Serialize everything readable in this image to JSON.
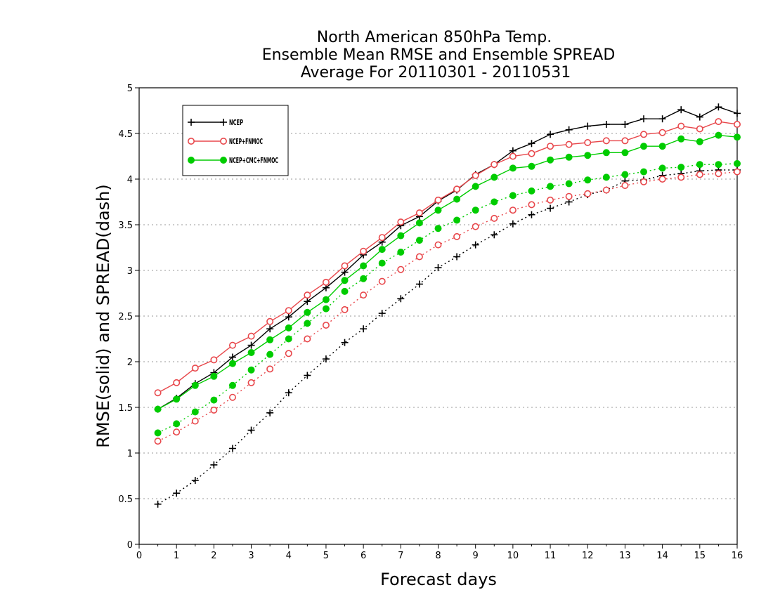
{
  "chart_data": {
    "type": "line",
    "title": [
      "North American 850hPa Temp.",
      "Ensemble Mean RMSE and Ensemble SPREAD",
      "Average For 20110301 - 20110531"
    ],
    "xlabel": "Forecast days",
    "ylabel": "RMSE(solid) and SPREAD(dash)",
    "xlim": [
      0,
      16
    ],
    "ylim": [
      0,
      5
    ],
    "x_ticks": [
      "0",
      "1",
      "2",
      "3",
      "4",
      "5",
      "6",
      "7",
      "8",
      "9",
      "10",
      "11",
      "12",
      "13",
      "14",
      "15",
      "16"
    ],
    "y_ticks": [
      "0",
      "0.5",
      "1",
      "1.5",
      "2",
      "2.5",
      "3",
      "3.5",
      "4",
      "4.5",
      "5"
    ],
    "grid": "horizontal dotted",
    "legend_position": "top-left",
    "x": [
      0.5,
      1,
      1.5,
      2,
      2.5,
      3,
      3.5,
      4,
      4.5,
      5,
      5.5,
      6,
      6.5,
      7,
      7.5,
      8,
      8.5,
      9,
      9.5,
      10,
      10.5,
      11,
      11.5,
      12,
      12.5,
      13,
      13.5,
      14,
      14.5,
      15,
      15.5,
      16
    ],
    "series": [
      {
        "name": "NCEP",
        "color": "#000000",
        "marker": "plus",
        "style": "solid",
        "values": [
          1.48,
          1.6,
          1.76,
          1.88,
          2.05,
          2.18,
          2.36,
          2.49,
          2.66,
          2.81,
          2.98,
          3.17,
          3.31,
          3.49,
          3.59,
          3.76,
          3.88,
          4.05,
          4.16,
          4.31,
          4.39,
          4.49,
          4.54,
          4.58,
          4.6,
          4.6,
          4.66,
          4.66,
          4.76,
          4.68,
          4.79,
          4.72
        ]
      },
      {
        "name": "NCEP+FNMOC",
        "color": "#e8474b",
        "marker": "open-circle",
        "style": "solid",
        "values": [
          1.66,
          1.77,
          1.93,
          2.02,
          2.18,
          2.28,
          2.44,
          2.56,
          2.73,
          2.87,
          3.05,
          3.21,
          3.36,
          3.53,
          3.63,
          3.77,
          3.89,
          4.04,
          4.16,
          4.25,
          4.28,
          4.36,
          4.38,
          4.4,
          4.42,
          4.42,
          4.49,
          4.51,
          4.58,
          4.55,
          4.63,
          4.6
        ]
      },
      {
        "name": "NCEP+CMC+FNMOC",
        "color": "#00cc00",
        "marker": "filled-circle",
        "style": "solid",
        "values": [
          1.48,
          1.59,
          1.74,
          1.84,
          1.98,
          2.1,
          2.24,
          2.37,
          2.54,
          2.68,
          2.89,
          3.05,
          3.23,
          3.38,
          3.52,
          3.66,
          3.78,
          3.92,
          4.02,
          4.12,
          4.14,
          4.21,
          4.24,
          4.26,
          4.29,
          4.29,
          4.36,
          4.36,
          4.44,
          4.41,
          4.48,
          4.46
        ]
      },
      {
        "name": "NCEP spread",
        "color": "#000000",
        "marker": "plus",
        "style": "dotted",
        "values": [
          0.44,
          0.56,
          0.7,
          0.87,
          1.05,
          1.25,
          1.44,
          1.66,
          1.85,
          2.03,
          2.21,
          2.36,
          2.53,
          2.69,
          2.85,
          3.03,
          3.15,
          3.28,
          3.39,
          3.51,
          3.61,
          3.68,
          3.75,
          3.83,
          3.88,
          3.98,
          3.99,
          4.04,
          4.06,
          4.09,
          4.1,
          4.1
        ]
      },
      {
        "name": "NCEP+FNMOC spread",
        "color": "#e8474b",
        "marker": "open-circle",
        "style": "dotted",
        "values": [
          1.13,
          1.23,
          1.35,
          1.47,
          1.61,
          1.77,
          1.92,
          2.09,
          2.25,
          2.4,
          2.57,
          2.73,
          2.88,
          3.01,
          3.15,
          3.28,
          3.37,
          3.48,
          3.57,
          3.66,
          3.72,
          3.77,
          3.81,
          3.84,
          3.88,
          3.93,
          3.97,
          4.0,
          4.02,
          4.05,
          4.06,
          4.08
        ]
      },
      {
        "name": "NCEP+CMC+FNMOC spread",
        "color": "#00cc00",
        "marker": "filled-circle",
        "style": "dotted",
        "values": [
          1.22,
          1.32,
          1.45,
          1.58,
          1.74,
          1.91,
          2.08,
          2.25,
          2.42,
          2.58,
          2.77,
          2.91,
          3.08,
          3.2,
          3.33,
          3.46,
          3.55,
          3.66,
          3.75,
          3.82,
          3.87,
          3.92,
          3.95,
          3.99,
          4.02,
          4.05,
          4.08,
          4.12,
          4.13,
          4.16,
          4.16,
          4.17
        ]
      }
    ],
    "legend": [
      "NCEP",
      "NCEP+FNMOC",
      "NCEP+CMC+FNMOC"
    ]
  }
}
